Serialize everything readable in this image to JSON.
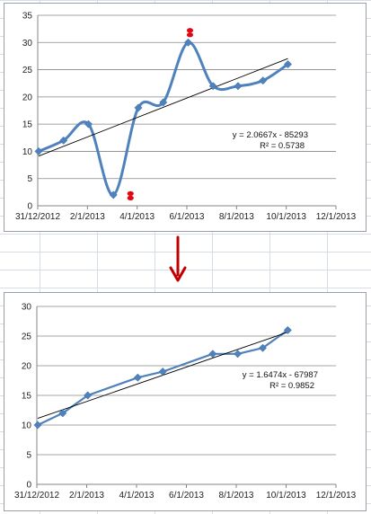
{
  "colors": {
    "series": "#4f81bd",
    "marker": "#4f81bd",
    "trendline": "#000000",
    "outlier_marker": "#e30613",
    "arrow": "#c00000",
    "axis": "#868686",
    "gridline": "#868686"
  },
  "icons": {
    "arrow": "down-arrow-icon",
    "outlier": "outlier-marker-icon"
  },
  "chart_data": [
    {
      "type": "scatter",
      "line_style": "smoothed",
      "grid": "horizontal",
      "legend": "none",
      "title": "",
      "xlabel": "",
      "ylabel": "",
      "xlim": [
        "2012-12-31",
        "2013-12-01"
      ],
      "ylim": [
        0,
        35
      ],
      "y_ticks": [
        0,
        5,
        10,
        15,
        20,
        25,
        30,
        35
      ],
      "x_tick_labels": [
        "31/12/2012",
        "2/1/2013",
        "4/1/2013",
        "6/1/2013",
        "8/1/2013",
        "10/1/2013",
        "12/1/2013"
      ],
      "series": [
        {
          "x": [
            "2013-01-01",
            "2013-01-29",
            "2013-02-26",
            "2013-03-26",
            "2013-04-23",
            "2013-05-21",
            "2013-06-18",
            "2013-07-16",
            "2013-08-13",
            "2013-09-10",
            "2013-10-08"
          ],
          "y": [
            10,
            12,
            15,
            2,
            18,
            19,
            30,
            22,
            22,
            23,
            26
          ]
        }
      ],
      "trendline": {
        "type": "linear",
        "equation": "y = 2.0667x - 85293",
        "r_squared": "R² = 0.5738"
      },
      "highlighted_outliers": [
        "2013-03-26",
        "2013-06-18"
      ]
    },
    {
      "type": "scatter",
      "line_style": "straight",
      "grid": "horizontal",
      "legend": "none",
      "title": "",
      "xlabel": "",
      "ylabel": "",
      "xlim": [
        "2012-12-31",
        "2013-12-01"
      ],
      "ylim": [
        0,
        30
      ],
      "y_ticks": [
        0,
        5,
        10,
        15,
        20,
        25,
        30
      ],
      "x_tick_labels": [
        "31/12/2012",
        "2/1/2013",
        "4/1/2013",
        "6/1/2013",
        "8/1/2013",
        "10/1/2013",
        "12/1/2013"
      ],
      "series": [
        {
          "x": [
            "2013-01-01",
            "2013-01-29",
            "2013-02-26",
            "2013-04-23",
            "2013-05-21",
            "2013-07-16",
            "2013-08-13",
            "2013-09-10",
            "2013-10-08"
          ],
          "y": [
            10,
            12,
            15,
            18,
            19,
            22,
            22,
            23,
            26
          ]
        }
      ],
      "trendline": {
        "type": "linear",
        "equation": "y = 1.6474x - 67987",
        "r_squared": "R² = 0.9852"
      }
    }
  ]
}
